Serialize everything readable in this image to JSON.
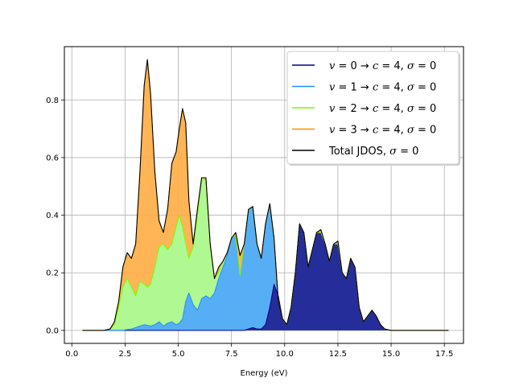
{
  "chart_data": {
    "type": "area",
    "title": "",
    "xlabel": "Energy (eV)",
    "ylabel": "",
    "xlim": [
      -0.35,
      18.4
    ],
    "ylim": [
      -0.045,
      0.985
    ],
    "grid": true,
    "legend_position": "top-right",
    "xticks": [
      0.0,
      2.5,
      5.0,
      7.5,
      10.0,
      12.5,
      15.0,
      17.5
    ],
    "xtick_labels": [
      "0.0",
      "2.5",
      "5.0",
      "7.5",
      "10.0",
      "12.5",
      "15.0",
      "17.5"
    ],
    "yticks": [
      0.0,
      0.2,
      0.4,
      0.6,
      0.8
    ],
    "ytick_labels": [
      "0.0",
      "0.2",
      "0.4",
      "0.6",
      "0.8"
    ],
    "x": [
      0.5,
      1.5,
      1.8,
      2.0,
      2.2,
      2.4,
      2.6,
      2.8,
      3.0,
      3.2,
      3.4,
      3.55,
      3.7,
      3.9,
      4.1,
      4.3,
      4.5,
      4.7,
      4.9,
      5.05,
      5.2,
      5.35,
      5.5,
      5.7,
      5.9,
      6.1,
      6.3,
      6.5,
      6.7,
      6.9,
      7.1,
      7.3,
      7.5,
      7.7,
      7.9,
      8.1,
      8.3,
      8.5,
      8.7,
      8.9,
      9.1,
      9.3,
      9.5,
      9.7,
      9.9,
      10.1,
      10.3,
      10.5,
      10.7,
      10.9,
      11.1,
      11.3,
      11.5,
      11.7,
      11.9,
      12.1,
      12.3,
      12.5,
      12.7,
      12.9,
      13.1,
      13.3,
      13.5,
      13.7,
      13.9,
      14.1,
      14.3,
      14.5,
      14.7,
      15.0,
      16.0,
      17.7
    ],
    "series": [
      {
        "name": "v = 0 → c = 4, σ = 0",
        "color": "#00008b",
        "fill": "#1f1f8f",
        "values": [
          0,
          0,
          0,
          0,
          0,
          0,
          0,
          0,
          0,
          0,
          0,
          0,
          0,
          0,
          0,
          0,
          0,
          0,
          0,
          0,
          0,
          0,
          0,
          0,
          0,
          0,
          0,
          0,
          0,
          0,
          0,
          0,
          0,
          0,
          0,
          0,
          0.005,
          0.01,
          0.005,
          0.005,
          0.02,
          0.08,
          0.16,
          0.12,
          0.04,
          0.02,
          0.08,
          0.2,
          0.37,
          0.34,
          0.22,
          0.28,
          0.34,
          0.34,
          0.3,
          0.24,
          0.3,
          0.3,
          0.2,
          0.18,
          0.25,
          0.22,
          0.08,
          0.03,
          0.05,
          0.07,
          0.05,
          0.02,
          0.005,
          0,
          0,
          0
        ]
      },
      {
        "name": "v = 1 → c = 4, σ = 0",
        "color": "#1e90ff",
        "fill": "#4da6ff",
        "values": [
          0,
          0,
          0,
          0,
          0,
          0,
          0.003,
          0.005,
          0.01,
          0.015,
          0.02,
          0.018,
          0.015,
          0.02,
          0.03,
          0.015,
          0.025,
          0.03,
          0.02,
          0.025,
          0.04,
          0.1,
          0.13,
          0.09,
          0.07,
          0.11,
          0.12,
          0.11,
          0.13,
          0.18,
          0.22,
          0.26,
          0.32,
          0.33,
          0.19,
          0.3,
          0.42,
          0.43,
          0.3,
          0.25,
          0.37,
          0.44,
          0.32,
          0.1,
          0.04,
          0.02,
          0.08,
          0.2,
          0.37,
          0.34,
          0.22,
          0.28,
          0.34,
          0.34,
          0.3,
          0.24,
          0.3,
          0.3,
          0.2,
          0.18,
          0.25,
          0.22,
          0.08,
          0.03,
          0.05,
          0.07,
          0.05,
          0.02,
          0.005,
          0,
          0,
          0
        ]
      },
      {
        "name": "v = 2 → c = 4, σ = 0",
        "color": "#7cfc00",
        "fill": "#a6ff99",
        "values": [
          0,
          0,
          0.005,
          0.02,
          0.08,
          0.15,
          0.18,
          0.15,
          0.12,
          0.17,
          0.16,
          0.15,
          0.16,
          0.22,
          0.29,
          0.3,
          0.28,
          0.3,
          0.36,
          0.4,
          0.36,
          0.3,
          0.25,
          0.29,
          0.4,
          0.53,
          0.52,
          0.3,
          0.18,
          0.2,
          0.24,
          0.27,
          0.32,
          0.33,
          0.19,
          0.3,
          0.42,
          0.43,
          0.3,
          0.25,
          0.37,
          0.44,
          0.32,
          0.1,
          0.04,
          0.02,
          0.08,
          0.2,
          0.37,
          0.34,
          0.22,
          0.28,
          0.34,
          0.34,
          0.3,
          0.24,
          0.3,
          0.3,
          0.2,
          0.18,
          0.25,
          0.22,
          0.08,
          0.03,
          0.05,
          0.07,
          0.05,
          0.02,
          0.005,
          0,
          0,
          0
        ]
      },
      {
        "name": "v = 3 → c = 4, σ = 0",
        "color": "#ff8c00",
        "fill": "#ffad42",
        "values": [
          0,
          0,
          0.005,
          0.03,
          0.1,
          0.22,
          0.27,
          0.25,
          0.3,
          0.55,
          0.85,
          0.94,
          0.82,
          0.55,
          0.38,
          0.34,
          0.42,
          0.58,
          0.62,
          0.7,
          0.77,
          0.72,
          0.45,
          0.3,
          0.42,
          0.53,
          0.53,
          0.3,
          0.18,
          0.22,
          0.24,
          0.27,
          0.32,
          0.34,
          0.26,
          0.3,
          0.42,
          0.43,
          0.3,
          0.25,
          0.37,
          0.44,
          0.32,
          0.1,
          0.04,
          0.02,
          0.08,
          0.2,
          0.37,
          0.34,
          0.22,
          0.28,
          0.34,
          0.35,
          0.3,
          0.24,
          0.3,
          0.31,
          0.2,
          0.18,
          0.25,
          0.22,
          0.08,
          0.03,
          0.05,
          0.07,
          0.05,
          0.02,
          0.005,
          0,
          0,
          0
        ]
      },
      {
        "name": "Total JDOS, σ = 0",
        "color": "#000000",
        "fill": "none",
        "values": [
          0,
          0,
          0.005,
          0.03,
          0.1,
          0.22,
          0.27,
          0.25,
          0.3,
          0.55,
          0.85,
          0.94,
          0.82,
          0.55,
          0.38,
          0.34,
          0.42,
          0.58,
          0.62,
          0.7,
          0.77,
          0.72,
          0.45,
          0.3,
          0.42,
          0.53,
          0.53,
          0.3,
          0.18,
          0.22,
          0.24,
          0.27,
          0.32,
          0.34,
          0.26,
          0.3,
          0.42,
          0.43,
          0.3,
          0.25,
          0.37,
          0.44,
          0.32,
          0.1,
          0.04,
          0.02,
          0.08,
          0.2,
          0.37,
          0.34,
          0.22,
          0.28,
          0.34,
          0.35,
          0.3,
          0.24,
          0.3,
          0.31,
          0.2,
          0.18,
          0.25,
          0.22,
          0.08,
          0.03,
          0.05,
          0.07,
          0.05,
          0.02,
          0.005,
          0,
          0,
          0
        ]
      }
    ],
    "legend": [
      {
        "v": "0",
        "c": "4",
        "sigma": "0"
      },
      {
        "v": "1",
        "c": "4",
        "sigma": "0"
      },
      {
        "v": "2",
        "c": "4",
        "sigma": "0"
      },
      {
        "v": "3",
        "c": "4",
        "sigma": "0"
      },
      {
        "label": "Total JDOS, ",
        "sigma": "0"
      }
    ]
  }
}
